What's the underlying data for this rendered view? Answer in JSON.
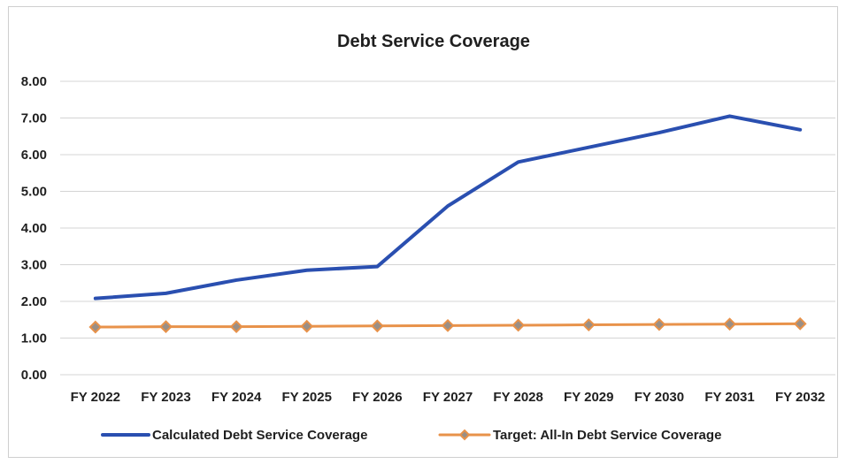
{
  "chart_data": {
    "type": "line",
    "title": "Debt Service Coverage",
    "xlabel": "",
    "ylabel": "",
    "categories": [
      "FY 2022",
      "FY 2023",
      "FY 2024",
      "FY 2025",
      "FY 2026",
      "FY 2027",
      "FY 2028",
      "FY 2029",
      "FY 2030",
      "FY 2031",
      "FY 2032"
    ],
    "ylim": [
      0,
      8
    ],
    "yticks": [
      "0.00",
      "1.00",
      "2.00",
      "3.00",
      "4.00",
      "5.00",
      "6.00",
      "7.00",
      "8.00"
    ],
    "grid": true,
    "legend_position": "bottom",
    "series": [
      {
        "name": "Calculated Debt Service Coverage",
        "color": "#2a4fb0",
        "marker": "none",
        "values": [
          2.08,
          2.22,
          2.58,
          2.85,
          2.95,
          4.6,
          5.8,
          6.2,
          6.6,
          7.05,
          6.68
        ]
      },
      {
        "name": "Target: All-In Debt Service Coverage",
        "color": "#e8924a",
        "marker": "diamond",
        "values": [
          1.3,
          1.31,
          1.31,
          1.32,
          1.33,
          1.34,
          1.35,
          1.36,
          1.37,
          1.38,
          1.39
        ]
      }
    ]
  }
}
